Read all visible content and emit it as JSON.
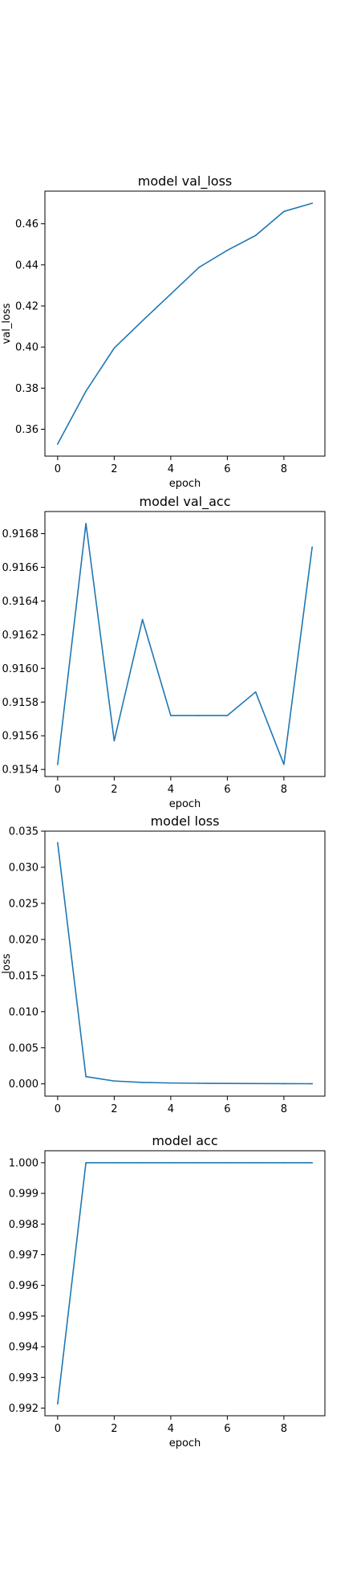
{
  "line_color": "#1f77b4",
  "chart_data": [
    {
      "type": "line",
      "title": "model val_loss",
      "xlabel": "epoch",
      "ylabel": "val_loss",
      "x": [
        0,
        1,
        2,
        3,
        4,
        5,
        6,
        7,
        8,
        9
      ],
      "series": [
        {
          "values": [
            0.3528,
            0.3785,
            0.3995,
            0.4128,
            0.4258,
            0.4388,
            0.4471,
            0.4543,
            0.466,
            0.47
          ]
        }
      ],
      "xlim": [
        -0.45,
        9.45
      ],
      "ylim": [
        0.3469,
        0.4759
      ],
      "xticks": [
        0,
        2,
        4,
        6,
        8
      ],
      "xtick_labels": [
        "0",
        "2",
        "4",
        "6",
        "8"
      ],
      "yticks": [
        0.36,
        0.38,
        0.4,
        0.42,
        0.44,
        0.46
      ],
      "ytick_labels": [
        "0.36",
        "0.38",
        "0.40",
        "0.42",
        "0.44",
        "0.46"
      ],
      "grid": false,
      "legend": false
    },
    {
      "type": "line",
      "title": "model val_acc",
      "xlabel": "epoch",
      "ylabel": "",
      "x": [
        0,
        1,
        2,
        3,
        4,
        5,
        6,
        7,
        8,
        9
      ],
      "series": [
        {
          "values": [
            0.91543,
            0.91686,
            0.91557,
            0.91629,
            0.91572,
            0.91572,
            0.91572,
            0.91586,
            0.91543,
            0.91672
          ]
        }
      ],
      "xlim": [
        -0.45,
        9.45
      ],
      "ylim": [
        0.915358,
        0.916931
      ],
      "xticks": [
        0,
        2,
        4,
        6,
        8
      ],
      "xtick_labels": [
        "0",
        "2",
        "4",
        "6",
        "8"
      ],
      "yticks": [
        0.9154,
        0.9156,
        0.9158,
        0.916,
        0.9162,
        0.9164,
        0.9166,
        0.9168
      ],
      "ytick_labels": [
        "0.9154",
        "0.9156",
        "0.9158",
        "0.9160",
        "0.9162",
        "0.9164",
        "0.9166",
        "0.9168"
      ],
      "grid": false,
      "legend": false
    },
    {
      "type": "line",
      "title": "model loss",
      "xlabel": "",
      "ylabel": "loss",
      "x": [
        0,
        1,
        2,
        3,
        4,
        5,
        6,
        7,
        8,
        9
      ],
      "series": [
        {
          "values": [
            0.0334,
            0.001,
            0.0004,
            0.0002,
            0.00012,
            8e-05,
            6e-05,
            4e-05,
            3e-05,
            2e-05
          ]
        }
      ],
      "xlim": [
        -0.45,
        9.45
      ],
      "ylim": [
        -0.0017,
        0.035
      ],
      "xticks": [
        0,
        2,
        4,
        6,
        8
      ],
      "xtick_labels": [
        "0",
        "2",
        "4",
        "6",
        "8"
      ],
      "yticks": [
        0.0,
        0.005,
        0.01,
        0.015,
        0.02,
        0.025,
        0.03,
        0.035
      ],
      "ytick_labels": [
        "0.000",
        "0.005",
        "0.010",
        "0.015",
        "0.020",
        "0.025",
        "0.030",
        "0.035"
      ],
      "grid": false,
      "legend": false
    },
    {
      "type": "line",
      "title": "model acc",
      "xlabel": "epoch",
      "ylabel": "",
      "x": [
        0,
        1,
        2,
        3,
        4,
        5,
        6,
        7,
        8,
        9
      ],
      "series": [
        {
          "values": [
            0.99214,
            1.0,
            1.0,
            1.0,
            1.0,
            1.0,
            1.0,
            1.0,
            1.0,
            1.0
          ]
        }
      ],
      "xlim": [
        -0.45,
        9.45
      ],
      "ylim": [
        0.99175,
        1.00039
      ],
      "xticks": [
        0,
        2,
        4,
        6,
        8
      ],
      "xtick_labels": [
        "0",
        "2",
        "4",
        "6",
        "8"
      ],
      "yticks": [
        0.992,
        0.993,
        0.994,
        0.995,
        0.996,
        0.997,
        0.998,
        0.999,
        1.0
      ],
      "ytick_labels": [
        "0.992",
        "0.993",
        "0.994",
        "0.995",
        "0.996",
        "0.997",
        "0.998",
        "0.999",
        "1.000"
      ],
      "grid": false,
      "legend": false
    }
  ]
}
